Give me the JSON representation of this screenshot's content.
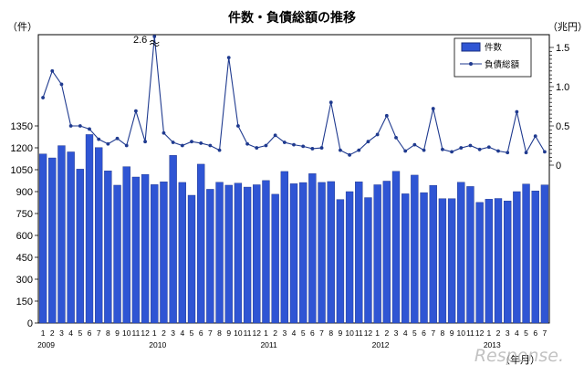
{
  "chart_data": {
    "type": "bar",
    "title": "件数・負債総額の推移",
    "left_unit": "（件）",
    "right_unit": "（兆円）",
    "x_unit": "（年月）",
    "yticks_left": [
      "0",
      "150",
      "300",
      "450",
      "600",
      "750",
      "900",
      "1050",
      "1200",
      "1350"
    ],
    "yticks_right": [
      "0",
      "0.5",
      "1.0",
      "1.5"
    ],
    "ylim_left": [
      0,
      1350
    ],
    "ylim_right": [
      -1.3,
      1.55
    ],
    "months": [
      "1",
      "2",
      "3",
      "4",
      "5",
      "6",
      "7",
      "8",
      "9",
      "10",
      "11",
      "12",
      "1",
      "2",
      "3",
      "4",
      "5",
      "6",
      "7",
      "8",
      "9",
      "10",
      "11",
      "12",
      "1",
      "2",
      "3",
      "4",
      "5",
      "6",
      "7",
      "8",
      "9",
      "10",
      "11",
      "12",
      "1",
      "2",
      "3",
      "4",
      "5",
      "6",
      "7",
      "8",
      "9",
      "10",
      "11",
      "12",
      "1",
      "2",
      "3",
      "4",
      "5",
      "6",
      "7"
    ],
    "years": [
      {
        "label": "2009",
        "index": 0
      },
      {
        "label": "2010",
        "index": 12
      },
      {
        "label": "2011",
        "index": 24
      },
      {
        "label": "2012",
        "index": 36
      },
      {
        "label": "2013",
        "index": 48
      }
    ],
    "series": [
      {
        "name": "件数",
        "kind": "bar",
        "axis": "left",
        "color": "#2f55d4",
        "values": [
          1158,
          1131,
          1215,
          1172,
          1054,
          1291,
          1202,
          1042,
          944,
          1071,
          1000,
          1018,
          948,
          967,
          1148,
          963,
          875,
          1088,
          916,
          964,
          944,
          958,
          931,
          947,
          976,
          882,
          1038,
          954,
          962,
          1023,
          963,
          969,
          846,
          900,
          967,
          859,
          947,
          972,
          1039,
          885,
          1013,
          893,
          943,
          852,
          852,
          964,
          935,
          826,
          848,
          853,
          836,
          900,
          952,
          905,
          946
        ]
      },
      {
        "name": "負債総額",
        "kind": "line",
        "axis": "right",
        "color": "#1f3a8f",
        "values": [
          0.86,
          1.2,
          1.03,
          0.5,
          0.5,
          0.46,
          0.33,
          0.27,
          0.34,
          0.25,
          0.69,
          0.3,
          2.6,
          0.41,
          0.29,
          0.25,
          0.3,
          0.28,
          0.25,
          0.19,
          1.37,
          0.5,
          0.27,
          0.22,
          0.25,
          0.38,
          0.29,
          0.26,
          0.24,
          0.21,
          0.22,
          0.8,
          0.19,
          0.13,
          0.19,
          0.3,
          0.39,
          0.63,
          0.35,
          0.18,
          0.26,
          0.19,
          0.72,
          0.2,
          0.17,
          0.22,
          0.25,
          0.2,
          0.23,
          0.18,
          0.16,
          0.68,
          0.16,
          0.37,
          0.17
        ]
      }
    ],
    "annotation": {
      "text": "2.6",
      "index": 12
    },
    "legend": {
      "position": "top-right",
      "bar_label": "件数",
      "line_label": "負債総額"
    },
    "grid": false
  },
  "watermark": "Response."
}
